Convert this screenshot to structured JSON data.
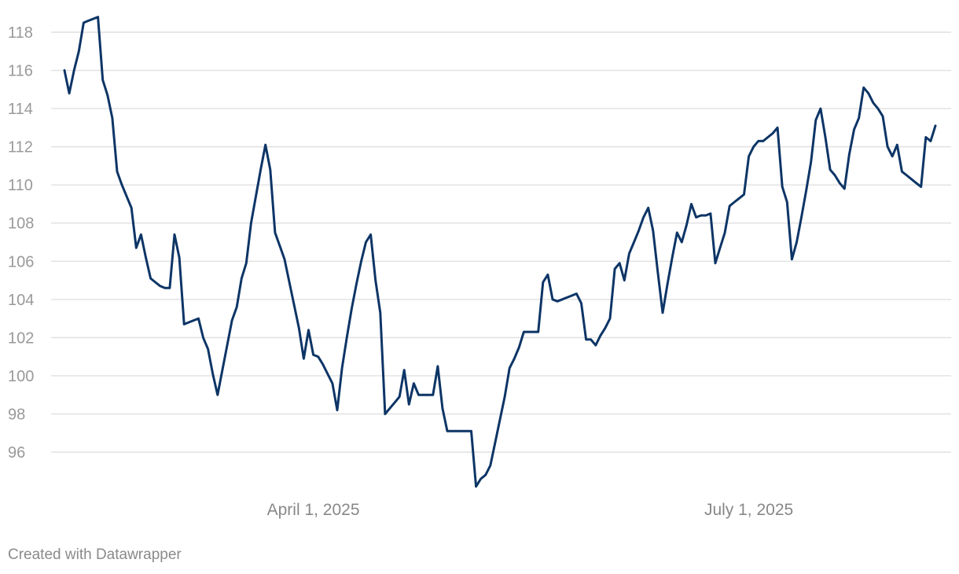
{
  "chart_data": {
    "type": "line",
    "title": "",
    "xlabel": "",
    "ylabel": "",
    "ylim": [
      94,
      119
    ],
    "grid": true,
    "yticks": [
      96,
      98,
      100,
      102,
      104,
      106,
      108,
      110,
      112,
      114,
      116,
      118
    ],
    "xticks": [
      {
        "label": "April 1, 2025",
        "index": 52
      },
      {
        "label": "July 1, 2025",
        "index": 143
      }
    ],
    "series": [
      {
        "color": "#0d3566",
        "values": [
          116.0,
          114.8,
          116.0,
          117.0,
          118.5,
          118.6,
          118.7,
          118.8,
          115.5,
          114.7,
          113.5,
          110.7,
          110.0,
          109.4,
          108.8,
          106.7,
          107.4,
          106.2,
          105.1,
          104.9,
          104.7,
          104.6,
          104.6,
          107.4,
          106.2,
          102.7,
          102.8,
          102.9,
          103.0,
          102.0,
          101.4,
          100.1,
          99.0,
          100.3,
          101.6,
          102.9,
          103.6,
          105.1,
          105.9,
          108.0,
          109.4,
          110.8,
          112.1,
          110.8,
          107.5,
          106.8,
          106.1,
          104.9,
          103.7,
          102.5,
          100.9,
          102.4,
          101.1,
          101.0,
          100.6,
          100.1,
          99.6,
          98.2,
          100.4,
          102.0,
          103.5,
          104.8,
          106.0,
          107.0,
          107.4,
          105.0,
          103.3,
          98.0,
          98.3,
          98.6,
          98.9,
          100.3,
          98.5,
          99.6,
          99.0,
          99.0,
          99.0,
          99.0,
          100.5,
          98.3,
          97.1,
          97.1,
          97.1,
          97.1,
          97.1,
          97.1,
          94.2,
          94.6,
          94.8,
          95.3,
          96.5,
          97.7,
          98.9,
          100.4,
          100.9,
          101.5,
          102.3,
          102.3,
          102.3,
          102.3,
          104.9,
          105.3,
          104.0,
          103.9,
          104.0,
          104.1,
          104.2,
          104.3,
          103.8,
          101.9,
          101.9,
          101.6,
          102.1,
          102.5,
          103.0,
          105.6,
          105.9,
          105.0,
          106.4,
          107.0,
          107.6,
          108.3,
          108.8,
          107.6,
          105.4,
          103.3,
          104.8,
          106.2,
          107.5,
          107.0,
          107.9,
          109.0,
          108.3,
          108.4,
          108.4,
          108.5,
          105.9,
          106.7,
          107.5,
          108.9,
          109.1,
          109.3,
          109.5,
          111.5,
          112.0,
          112.3,
          112.3,
          112.5,
          112.7,
          113.0,
          109.9,
          109.1,
          106.1,
          107.0,
          108.3,
          109.7,
          111.2,
          113.4,
          114.0,
          112.5,
          110.8,
          110.5,
          110.1,
          109.8,
          111.6,
          112.9,
          113.5,
          115.1,
          114.8,
          114.3,
          114.0,
          113.6,
          112.0,
          111.5,
          112.1,
          110.7,
          110.5,
          110.3,
          110.1,
          109.9,
          112.5,
          112.3,
          113.1
        ]
      }
    ]
  },
  "footer": {
    "credit": "Created with Datawrapper"
  }
}
